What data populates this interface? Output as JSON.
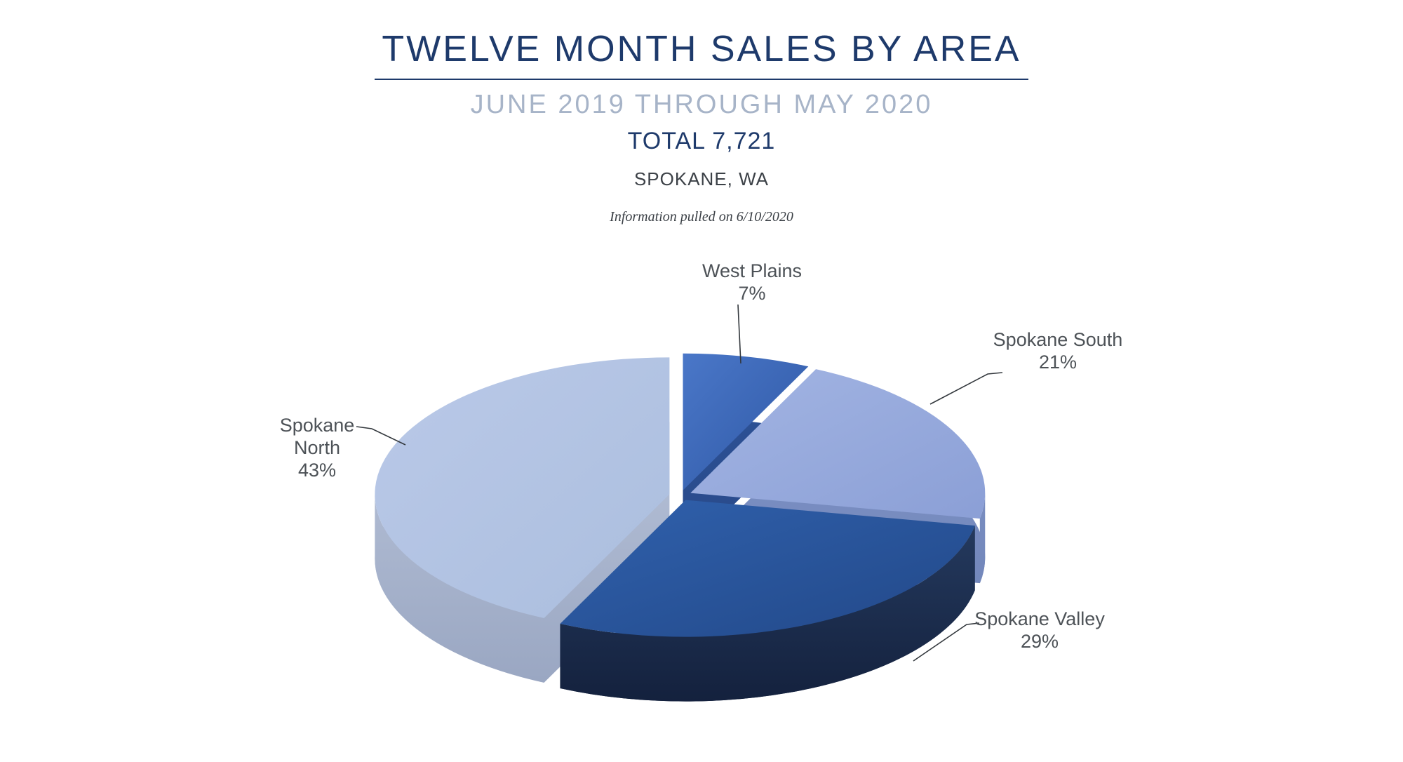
{
  "page": {
    "background": "#ffffff"
  },
  "header": {
    "title": "TWELVE MONTH SALES BY AREA",
    "subtitle": "JUNE 2019 THROUGH MAY 2020",
    "total_label": "TOTAL 7,721",
    "location": "SPOKANE, WA",
    "note": "Information pulled on 6/10/2020",
    "title_color": "#1e3a6b",
    "subtitle_color": "#a7b4c8",
    "total_color": "#1e3a6b",
    "location_color": "#3c4147",
    "note_color": "#3a3f45"
  },
  "chart_data": {
    "type": "pie",
    "style": "3d-exploded",
    "title": "TWELVE MONTH SALES BY AREA",
    "subtitle": "JUNE 2019 THROUGH MAY 2020",
    "total": 7721,
    "unit": "%",
    "start_at": "12-o-clock, clockwise",
    "legend": "none, direct labels with leader lines",
    "labels_color": "#4d5257",
    "leader_line_color": "#33383d",
    "categories": [
      "West Plains",
      "Spokane South",
      "Spokane Valley",
      "Spokane North"
    ],
    "values": [
      7,
      21,
      29,
      43
    ],
    "slices": [
      {
        "label": "West Plains",
        "pct": 7,
        "pct_label": "7%",
        "top_color": "#4a77c8",
        "top_color2": "#2e57a4",
        "side_top": "#2c5094",
        "side_bottom": "#24427c"
      },
      {
        "label": "Spokane South",
        "pct": 21,
        "pct_label": "21%",
        "top_color": "#a3b5e3",
        "top_color2": "#8b9fd6",
        "side_top": "#7e92c5",
        "side_bottom": "#6a7fb3"
      },
      {
        "label": "Spokane Valley",
        "pct": 29,
        "pct_label": "29%",
        "top_color": "#3061ad",
        "top_color2": "#224888",
        "side_top": "#4d5a72",
        "side_mid": "#24395d",
        "side_bottom": "#13203c"
      },
      {
        "label": "Spokane North",
        "pct": 43,
        "pct_label": "43%",
        "top_color": "#bac9e8",
        "top_color2": "#abbede",
        "side_top": "#b7c2d8",
        "side_bottom": "#97a4c0"
      }
    ]
  }
}
